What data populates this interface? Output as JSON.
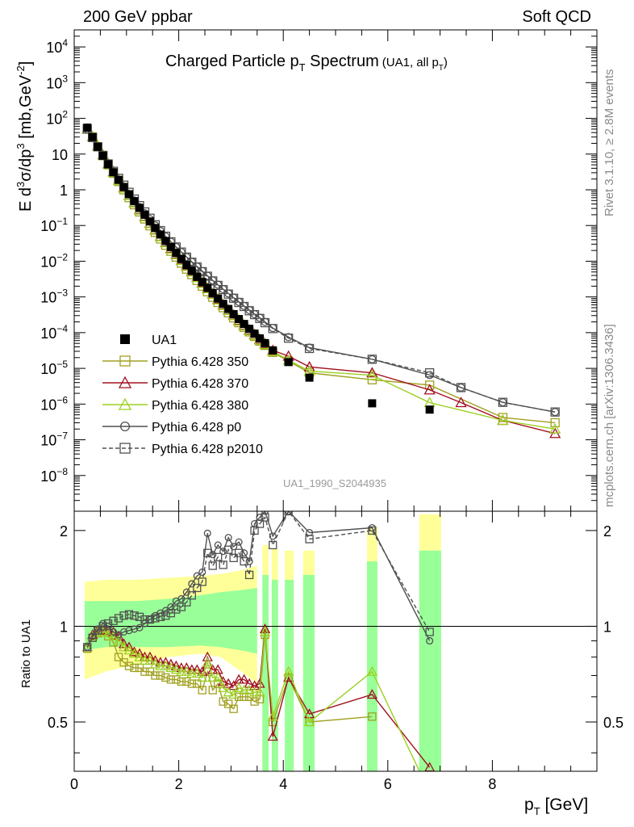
{
  "header": {
    "left": "200 GeV ppbar",
    "right": "Soft QCD"
  },
  "side": {
    "rivet": "Rivet 3.1.10, ≥ 2.8M events",
    "mcplots": "mcplots.cern.ch [arXiv:1306.3436]"
  },
  "chart_data": {
    "type": "scatter",
    "title_main": "Charged Particle p",
    "title_sub": "T",
    "title_main2": " Spectrum",
    "title_paren": "(UA1, all p",
    "title_paren_sub": "T",
    "title_paren_end": ")",
    "analysis_id": "UA1_1990_S2044935",
    "ylabel_parts": [
      "E d",
      "3",
      "σ/dp",
      "3",
      " [mb,GeV",
      "-2",
      "]"
    ],
    "xlabel_main": "p",
    "xlabel_sub": "T",
    "xlabel_unit": " [GeV]",
    "ratio_ylabel": "Ratio to UA1",
    "xlim": [
      0,
      10
    ],
    "ylim_log": [
      1e-09,
      30000
    ],
    "ratio_ylim": [
      0.35,
      2.3
    ],
    "x_ticks": [
      0,
      2,
      4,
      6,
      8
    ],
    "x_tick_labels": [
      "0",
      "2",
      "4",
      "6",
      "8"
    ],
    "y_ticks": [
      {
        "exp": 4,
        "base": "10",
        "sup": "4"
      },
      {
        "exp": 3,
        "base": "10",
        "sup": "3"
      },
      {
        "exp": 2,
        "base": "10",
        "sup": "2"
      },
      {
        "exp": 1,
        "base": "10",
        "sup": ""
      },
      {
        "exp": 0,
        "base": "1",
        "sup": ""
      },
      {
        "exp": -1,
        "base": "10",
        "sup": "−1"
      },
      {
        "exp": -2,
        "base": "10",
        "sup": "−2"
      },
      {
        "exp": -3,
        "base": "10",
        "sup": "−3"
      },
      {
        "exp": -4,
        "base": "10",
        "sup": "−4"
      },
      {
        "exp": -5,
        "base": "10",
        "sup": "−5"
      },
      {
        "exp": -6,
        "base": "10",
        "sup": "−6"
      },
      {
        "exp": -7,
        "base": "10",
        "sup": "−7"
      },
      {
        "exp": -8,
        "base": "10",
        "sup": "−8"
      }
    ],
    "ratio_ticks": [
      {
        "v": 0.5,
        "label": "0.5"
      },
      {
        "v": 1,
        "label": "1"
      },
      {
        "v": 2,
        "label": "2"
      }
    ],
    "data": {
      "name": "UA1",
      "color": "#000000",
      "x": [
        0.25,
        0.35,
        0.45,
        0.55,
        0.65,
        0.75,
        0.85,
        0.95,
        1.05,
        1.15,
        1.25,
        1.35,
        1.45,
        1.55,
        1.65,
        1.75,
        1.85,
        1.95,
        2.05,
        2.15,
        2.25,
        2.35,
        2.45,
        2.55,
        2.65,
        2.75,
        2.85,
        2.95,
        3.05,
        3.15,
        3.25,
        3.35,
        3.45,
        3.55,
        3.65,
        3.8,
        4.1,
        4.5,
        5.7,
        6.8
      ],
      "y": [
        55,
        30,
        16,
        9,
        5.2,
        3.1,
        1.9,
        1.2,
        0.75,
        0.48,
        0.31,
        0.2,
        0.13,
        0.085,
        0.056,
        0.037,
        0.025,
        0.017,
        0.0115,
        0.0078,
        0.0054,
        0.0037,
        0.0026,
        0.0018,
        0.00128,
        0.0009,
        0.00064,
        0.00046,
        0.00033,
        0.00024,
        0.000175,
        0.000128,
        9.4e-05,
        6.9e-05,
        5.1e-05,
        3.2e-05,
        1.5e-05,
        5.5e-06,
        1.05e-06,
        7e-07
      ]
    },
    "mc_x": [
      0.25,
      0.35,
      0.45,
      0.55,
      0.65,
      0.75,
      0.85,
      0.95,
      1.05,
      1.15,
      1.25,
      1.35,
      1.45,
      1.55,
      1.65,
      1.75,
      1.85,
      1.95,
      2.05,
      2.15,
      2.25,
      2.35,
      2.45,
      2.55,
      2.65,
      2.75,
      2.85,
      2.95,
      3.05,
      3.15,
      3.25,
      3.35,
      3.45,
      3.55,
      3.65,
      3.8,
      4.1,
      4.5,
      5.7,
      6.8
    ],
    "band_outer": [
      [
        0.2,
        0.68,
        1.38
      ],
      [
        0.6,
        0.72,
        1.4
      ],
      [
        1.2,
        0.76,
        1.4
      ],
      [
        1.8,
        0.8,
        1.42
      ],
      [
        2.4,
        0.82,
        1.44
      ],
      [
        2.8,
        0.8,
        1.46
      ],
      [
        3.2,
        0.72,
        1.5
      ],
      [
        3.5,
        0.66,
        1.55
      ]
    ],
    "band_inner": [
      [
        0.2,
        0.84,
        1.2
      ],
      [
        0.6,
        0.86,
        1.2
      ],
      [
        1.2,
        0.86,
        1.2
      ],
      [
        1.8,
        0.86,
        1.22
      ],
      [
        2.4,
        0.87,
        1.25
      ],
      [
        2.8,
        0.86,
        1.28
      ],
      [
        3.2,
        0.84,
        1.3
      ],
      [
        3.5,
        0.82,
        1.32
      ]
    ],
    "band_bins": [
      {
        "x0": 3.6,
        "x1": 3.72,
        "yo": [
          0.35,
          1.8
        ],
        "yi": [
          0.35,
          1.45
        ]
      },
      {
        "x0": 3.78,
        "x1": 3.9,
        "yo": [
          0.35,
          1.75
        ],
        "yi": [
          0.35,
          1.4
        ]
      },
      {
        "x0": 4.03,
        "x1": 4.2,
        "yo": [
          0.35,
          1.73
        ],
        "yi": [
          0.35,
          1.4
        ]
      },
      {
        "x0": 4.38,
        "x1": 4.6,
        "yo": [
          0.35,
          1.73
        ],
        "yi": [
          0.35,
          1.45
        ]
      },
      {
        "x0": 5.6,
        "x1": 5.8,
        "yo": [
          0.35,
          2.05
        ],
        "yi": [
          0.35,
          1.6
        ]
      },
      {
        "x0": 6.6,
        "x1": 7.02,
        "yo": [
          0.35,
          2.25
        ],
        "yi": [
          0.35,
          1.73
        ]
      }
    ],
    "series": [
      {
        "name": "Pythia 6.428 350",
        "color": "#a0a020",
        "marker": "square-open",
        "dashed": false,
        "x": [
          0.25,
          0.35,
          0.45,
          0.55,
          0.65,
          0.75,
          0.85,
          0.95,
          1.05,
          1.15,
          1.25,
          1.35,
          1.45,
          1.55,
          1.65,
          1.75,
          1.85,
          1.95,
          2.05,
          2.15,
          2.25,
          2.35,
          2.45,
          2.55,
          2.65,
          2.75,
          2.85,
          2.95,
          3.05,
          3.15,
          3.25,
          3.35,
          3.45,
          3.55,
          3.65,
          3.8,
          4.1,
          4.5,
          5.7,
          6.8,
          8.2,
          9.2
        ],
        "y": [
          50,
          30,
          16,
          9,
          5,
          2.9,
          1.7,
          1.0,
          0.6,
          0.38,
          0.24,
          0.152,
          0.098,
          0.064,
          0.042,
          0.028,
          0.019,
          0.013,
          0.0088,
          0.006,
          0.0042,
          0.0029,
          0.002,
          0.0014,
          0.00098,
          0.0007,
          0.0005,
          0.00036,
          0.00026,
          0.00019,
          0.000141,
          0.000105,
          7.8e-05,
          5.8e-05,
          4.4e-05,
          2.8e-05,
          1.6e-05,
          7.5e-06,
          4.8e-06,
          3.4e-06,
          4.2e-07,
          3e-07
        ],
        "ratio": [
          0.85,
          0.92,
          0.95,
          0.96,
          0.93,
          0.89,
          0.8,
          0.77,
          0.75,
          0.74,
          0.74,
          0.72,
          0.72,
          0.7,
          0.7,
          0.69,
          0.68,
          0.68,
          0.67,
          0.67,
          0.66,
          0.66,
          0.63,
          0.72,
          0.63,
          0.66,
          0.58,
          0.57,
          0.55,
          0.6,
          0.6,
          0.6,
          0.58,
          0.59,
          0.94,
          0.5,
          0.69,
          0.5,
          0.52
        ]
      },
      {
        "name": "Pythia 6.428 370",
        "color": "#a01020",
        "marker": "triangle-open",
        "dashed": false,
        "x": [
          0.25,
          0.35,
          0.45,
          0.55,
          0.65,
          0.75,
          0.85,
          0.95,
          1.05,
          1.15,
          1.25,
          1.35,
          1.45,
          1.55,
          1.65,
          1.75,
          1.85,
          1.95,
          2.05,
          2.15,
          2.25,
          2.35,
          2.45,
          2.55,
          2.65,
          2.75,
          2.85,
          2.95,
          3.05,
          3.15,
          3.25,
          3.35,
          3.45,
          3.55,
          3.65,
          3.8,
          4.1,
          4.5,
          5.7,
          6.8,
          7.4,
          8.2,
          9.2
        ],
        "y": [
          50,
          31,
          17,
          9.6,
          5.4,
          3.2,
          1.9,
          1.15,
          0.7,
          0.44,
          0.28,
          0.18,
          0.116,
          0.076,
          0.05,
          0.034,
          0.023,
          0.0158,
          0.0108,
          0.0075,
          0.0052,
          0.0036,
          0.0025,
          0.00175,
          0.00122,
          0.00086,
          0.0006,
          0.00043,
          0.00031,
          0.00022,
          0.00016,
          0.000118,
          8.8e-05,
          6.5e-05,
          4.9e-05,
          3.2e-05,
          2.2e-05,
          1.1e-05,
          7.5e-06,
          2.5e-06,
          1.1e-06,
          3.5e-07,
          1.5e-07
        ],
        "ratio": [
          0.86,
          0.94,
          0.97,
          0.97,
          0.97,
          0.96,
          0.93,
          0.88,
          0.86,
          0.83,
          0.82,
          0.8,
          0.8,
          0.78,
          0.77,
          0.77,
          0.76,
          0.75,
          0.74,
          0.74,
          0.73,
          0.73,
          0.72,
          0.8,
          0.73,
          0.73,
          0.67,
          0.66,
          0.65,
          0.68,
          0.68,
          0.66,
          0.65,
          0.66,
          0.98,
          0.45,
          0.69,
          0.53,
          0.61,
          0.36
        ]
      },
      {
        "name": "Pythia 6.428 380",
        "color": "#9ad020",
        "marker": "triangle-open",
        "dashed": false,
        "x": [
          0.25,
          0.35,
          0.45,
          0.55,
          0.65,
          0.75,
          0.85,
          0.95,
          1.05,
          1.15,
          1.25,
          1.35,
          1.45,
          1.55,
          1.65,
          1.75,
          1.85,
          1.95,
          2.05,
          2.15,
          2.25,
          2.35,
          2.45,
          2.55,
          2.65,
          2.75,
          2.85,
          2.95,
          3.05,
          3.15,
          3.25,
          3.35,
          3.45,
          3.55,
          3.65,
          3.8,
          4.1,
          4.5,
          5.7,
          6.8,
          8.2,
          9.2
        ],
        "y": [
          50,
          31,
          17,
          9.5,
          5.3,
          3.1,
          1.85,
          1.12,
          0.69,
          0.43,
          0.27,
          0.175,
          0.113,
          0.074,
          0.049,
          0.033,
          0.022,
          0.0153,
          0.0105,
          0.0072,
          0.005,
          0.0035,
          0.0024,
          0.0017,
          0.00118,
          0.00083,
          0.00058,
          0.00042,
          0.0003,
          0.00021,
          0.000155,
          0.000114,
          8.5e-05,
          6.2e-05,
          4.7e-05,
          3e-05,
          1.7e-05,
          8.4e-06,
          6.4e-06,
          1.1e-06,
          3.5e-07,
          2e-07
        ],
        "ratio": [
          0.86,
          0.93,
          0.96,
          0.96,
          0.95,
          0.93,
          0.9,
          0.86,
          0.84,
          0.82,
          0.8,
          0.78,
          0.78,
          0.76,
          0.75,
          0.75,
          0.74,
          0.73,
          0.72,
          0.72,
          0.71,
          0.71,
          0.69,
          0.77,
          0.69,
          0.69,
          0.64,
          0.62,
          0.61,
          0.64,
          0.63,
          0.63,
          0.62,
          0.62,
          0.96,
          0.52,
          0.72,
          0.5,
          0.72,
          0.3
        ]
      },
      {
        "name": "Pythia 6.428 p0",
        "color": "#505050",
        "marker": "circle-open",
        "dashed": false,
        "x": [
          0.25,
          0.35,
          0.45,
          0.55,
          0.65,
          0.75,
          0.85,
          0.95,
          1.05,
          1.15,
          1.25,
          1.35,
          1.45,
          1.55,
          1.65,
          1.75,
          1.85,
          1.95,
          2.05,
          2.15,
          2.25,
          2.35,
          2.45,
          2.55,
          2.65,
          2.75,
          2.85,
          2.95,
          3.05,
          3.15,
          3.25,
          3.35,
          3.45,
          3.55,
          3.65,
          3.8,
          4.1,
          4.5,
          5.7,
          6.8,
          7.4,
          8.2,
          9.2
        ],
        "y": [
          50,
          29,
          16,
          9.2,
          5.2,
          3.1,
          1.9,
          1.2,
          0.76,
          0.5,
          0.33,
          0.22,
          0.15,
          0.1,
          0.07,
          0.049,
          0.035,
          0.025,
          0.018,
          0.0131,
          0.0096,
          0.0071,
          0.0053,
          0.0039,
          0.0029,
          0.0022,
          0.00165,
          0.00125,
          0.00095,
          0.00073,
          0.00056,
          0.00043,
          0.00033,
          0.00026,
          0.0002,
          0.000135,
          7.5e-05,
          3.8e-05,
          1.8e-05,
          6.5e-06,
          2.9e-06,
          1.12e-06,
          6e-07
        ],
        "ratio": [
          0.86,
          0.93,
          0.98,
          1.02,
          1.0,
          0.96,
          0.94,
          0.96,
          0.97,
          0.98,
          0.99,
          1.02,
          1.05,
          1.08,
          1.1,
          1.12,
          1.15,
          1.2,
          1.22,
          1.28,
          1.36,
          1.44,
          1.48,
          1.96,
          1.68,
          1.8,
          1.72,
          1.9,
          1.78,
          1.84,
          1.7,
          1.6,
          2.1,
          2.2,
          2.3,
          1.92,
          2.3,
          1.97,
          2.04,
          0.9
        ]
      },
      {
        "name": "Pythia 6.428 p2010",
        "color": "#505050",
        "marker": "square-open",
        "dashed": true,
        "x": [
          0.25,
          0.35,
          0.45,
          0.55,
          0.65,
          0.75,
          0.85,
          0.95,
          1.05,
          1.15,
          1.25,
          1.35,
          1.45,
          1.55,
          1.65,
          1.75,
          1.85,
          1.95,
          2.05,
          2.15,
          2.25,
          2.35,
          2.45,
          2.55,
          2.65,
          2.75,
          2.85,
          2.95,
          3.05,
          3.15,
          3.25,
          3.35,
          3.45,
          3.55,
          3.65,
          3.8,
          4.1,
          4.5,
          5.7,
          6.8,
          7.4,
          8.2,
          9.2
        ],
        "y": [
          50,
          29,
          16,
          9.2,
          5.3,
          3.3,
          2.1,
          1.35,
          0.85,
          0.55,
          0.36,
          0.24,
          0.16,
          0.105,
          0.072,
          0.05,
          0.035,
          0.025,
          0.018,
          0.013,
          0.0094,
          0.0069,
          0.0051,
          0.0038,
          0.0028,
          0.0021,
          0.0016,
          0.0012,
          0.00092,
          0.0007,
          0.00054,
          0.00041,
          0.00032,
          0.00025,
          0.00019,
          0.00013,
          7e-05,
          3.6e-05,
          1.8e-05,
          7.5e-06,
          2.9e-06,
          1.12e-06,
          6e-07
        ],
        "ratio": [
          0.86,
          0.92,
          0.97,
          1.0,
          1.02,
          1.04,
          1.06,
          1.08,
          1.09,
          1.08,
          1.07,
          1.05,
          1.05,
          1.06,
          1.07,
          1.08,
          1.1,
          1.13,
          1.15,
          1.19,
          1.25,
          1.32,
          1.38,
          1.7,
          1.55,
          1.65,
          1.56,
          1.74,
          1.64,
          1.7,
          1.6,
          1.45,
          2.0,
          2.1,
          2.2,
          1.8,
          2.3,
          1.88,
          2.0,
          0.96
        ]
      }
    ],
    "legend": [
      {
        "name": "UA1",
        "marker": "square-filled",
        "color": "#000000",
        "line": false,
        "dashed": false
      },
      {
        "name": "Pythia 6.428 350",
        "marker": "square-open",
        "color": "#a0a020",
        "line": true,
        "dashed": false
      },
      {
        "name": "Pythia 6.428 370",
        "marker": "triangle-open",
        "color": "#a01020",
        "line": true,
        "dashed": false
      },
      {
        "name": "Pythia 6.428 380",
        "marker": "triangle-open",
        "color": "#9ad020",
        "line": true,
        "dashed": false
      },
      {
        "name": "Pythia 6.428 p0",
        "marker": "circle-open",
        "color": "#505050",
        "line": true,
        "dashed": false
      },
      {
        "name": "Pythia 6.428 p2010",
        "marker": "square-open",
        "color": "#505050",
        "line": true,
        "dashed": true
      }
    ],
    "band_colors": {
      "outer": "#ffff9a",
      "inner": "#99ff99"
    }
  }
}
